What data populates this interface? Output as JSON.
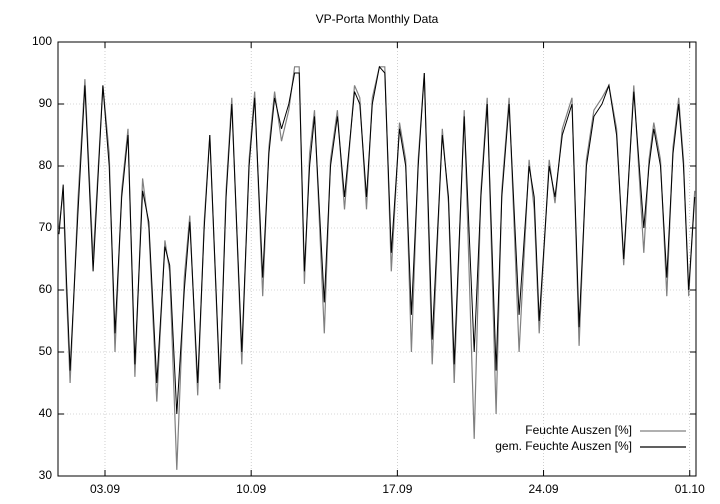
{
  "chart_data": {
    "type": "line",
    "title": "VP-Porta Monthly Data",
    "x": [
      -0.2,
      0.0,
      0.15,
      0.33,
      0.7,
      1.04,
      1.43,
      1.9,
      2.2,
      2.48,
      2.8,
      3.1,
      3.43,
      3.8,
      4.1,
      4.48,
      4.87,
      5.1,
      5.44,
      5.8,
      6.06,
      6.44,
      6.75,
      7.02,
      7.5,
      7.8,
      8.07,
      8.55,
      8.9,
      9.17,
      9.55,
      9.85,
      10.12,
      10.45,
      10.8,
      11.08,
      11.3,
      11.55,
      11.8,
      12.03,
      12.5,
      12.8,
      13.13,
      13.47,
      13.95,
      14.2,
      14.52,
      14.8,
      15.14,
      15.4,
      15.71,
      16.1,
      16.4,
      16.67,
      17.0,
      17.29,
      17.67,
      18.15,
      18.45,
      18.72,
      19.2,
      19.68,
      20.0,
      20.3,
      20.73,
      21.0,
      21.35,
      21.83,
      22.31,
      22.55,
      22.79,
      23.27,
      23.55,
      23.9,
      24.36,
      24.7,
      25.05,
      25.41,
      25.8,
      26.13,
      26.5,
      26.84,
      27.32,
      27.8,
      28.05,
      28.28,
      28.6,
      28.9,
      29.2,
      29.47,
      29.7,
      29.95,
      30.24
    ],
    "series": [
      {
        "name": "Feuchte Auszen [%]",
        "color": "#808080",
        "values": [
          70,
          76,
          60,
          45,
          74,
          94,
          65,
          93,
          82,
          50,
          76,
          86,
          46,
          78,
          70,
          42,
          68,
          63,
          31,
          62,
          72,
          43,
          71,
          85,
          44,
          76,
          91,
          48,
          81,
          92,
          59,
          83,
          92,
          84,
          89,
          96,
          96,
          61,
          82,
          89,
          53,
          81,
          89,
          73,
          93,
          91,
          73,
          91,
          96,
          96,
          63,
          87,
          81,
          50,
          81,
          95,
          48,
          86,
          74,
          45,
          89,
          36,
          76,
          91,
          40,
          76,
          91,
          50,
          81,
          73,
          53,
          81,
          74,
          86,
          91,
          51,
          81,
          89,
          91,
          93,
          86,
          64,
          93,
          66,
          81,
          87,
          81,
          59,
          83,
          91,
          81,
          59,
          76
        ]
      },
      {
        "name": "gem. Feuchte Auszen [%]",
        "color": "#000000",
        "values": [
          69,
          77,
          62,
          47,
          72,
          93,
          63,
          93,
          80,
          53,
          75,
          85,
          48,
          76,
          71,
          45,
          67,
          64,
          40,
          60,
          71,
          45,
          70,
          85,
          45,
          75,
          90,
          50,
          80,
          91,
          62,
          82,
          91,
          86,
          90,
          95,
          95,
          63,
          80,
          88,
          58,
          80,
          88,
          75,
          92,
          90,
          75,
          90,
          96,
          95,
          66,
          86,
          80,
          56,
          80,
          95,
          52,
          85,
          75,
          48,
          88,
          50,
          75,
          90,
          47,
          75,
          90,
          56,
          80,
          75,
          55,
          80,
          75,
          85,
          90,
          54,
          80,
          88,
          90,
          93,
          85,
          65,
          92,
          70,
          80,
          86,
          80,
          62,
          82,
          90,
          80,
          60,
          75
        ]
      }
    ],
    "xlim": [
      -0.25,
      30.3
    ],
    "xticks": [
      {
        "value": 2,
        "label": "03.09"
      },
      {
        "value": 9,
        "label": "10.09"
      },
      {
        "value": 16,
        "label": "17.09"
      },
      {
        "value": 23,
        "label": "24.09"
      },
      {
        "value": 30,
        "label": "01.10"
      }
    ],
    "ylim": [
      30,
      100
    ],
    "yticks": [
      30,
      40,
      50,
      60,
      70,
      80,
      90,
      100
    ],
    "grid": true,
    "legend": "bottom-right"
  }
}
